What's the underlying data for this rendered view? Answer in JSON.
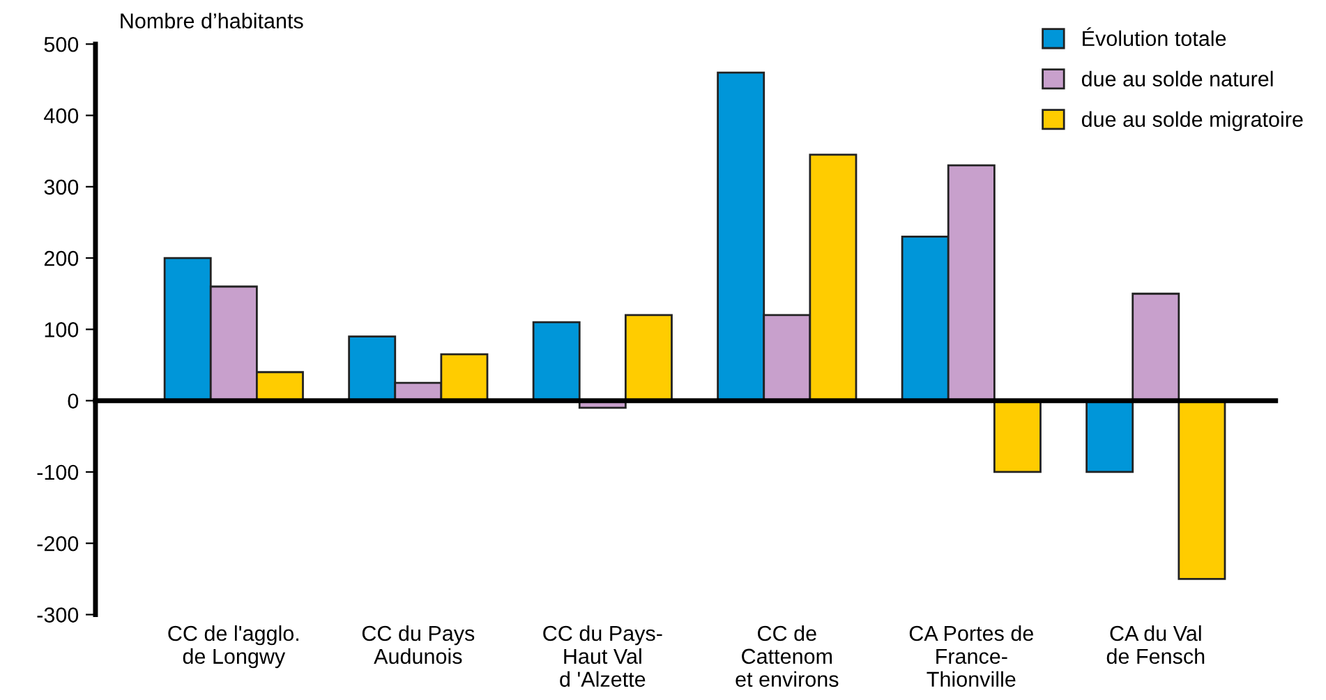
{
  "chart_data": {
    "type": "bar",
    "ylabel": "Nombre d’habitants",
    "categories": [
      "CC de l'agglo.\nde Longwy",
      "CC du Pays\nAudunois",
      "CC du Pays-\nHaut Val\nd 'Alzette",
      "CC de\nCattenom\net environs",
      "CA Portes de\nFrance-\nThionville",
      "CA du Val\nde Fensch"
    ],
    "series": [
      {
        "name": "Évolution totale",
        "color": "#0096d9",
        "values": [
          200,
          90,
          110,
          460,
          230,
          -100
        ]
      },
      {
        "name": "due au solde naturel",
        "color": "#c8a0cc",
        "values": [
          160,
          25,
          -10,
          120,
          330,
          150
        ]
      },
      {
        "name": "due au solde migratoire",
        "color": "#ffcc00",
        "values": [
          40,
          65,
          120,
          345,
          -100,
          -250
        ]
      }
    ],
    "ylim": [
      -300,
      500
    ],
    "yticks": [
      -300,
      -200,
      -100,
      0,
      100,
      200,
      300,
      400,
      500
    ],
    "legend": "top right"
  }
}
